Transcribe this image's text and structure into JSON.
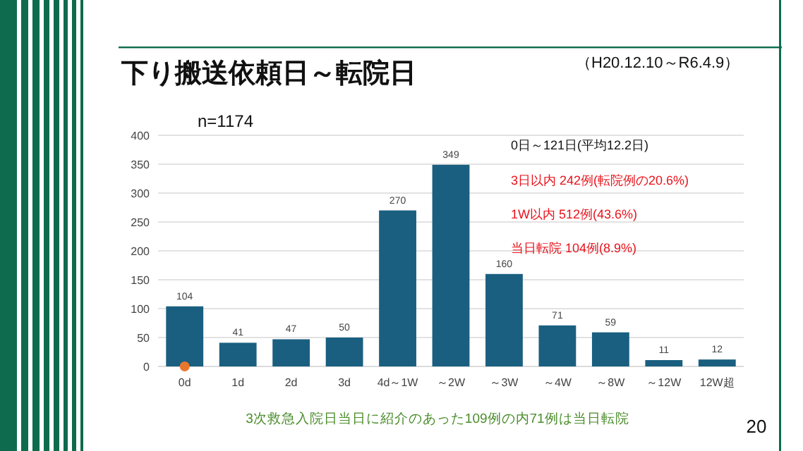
{
  "chart_data": {
    "type": "bar",
    "title": "下り搬送依頼日～転院日",
    "subtitle": "（H20.12.10～R6.4.9）",
    "categories": [
      "0d",
      "1d",
      "2d",
      "3d",
      "4d～1W",
      "～2W",
      "～3W",
      "～4W",
      "～8W",
      "～12W",
      "12W超"
    ],
    "values": [
      104,
      41,
      47,
      50,
      270,
      349,
      160,
      71,
      59,
      11,
      12
    ],
    "color": "#1a5f80",
    "series": [
      {
        "type": "scatter",
        "x": [
          "0d"
        ],
        "values": [
          0
        ],
        "value_labels": [
          null
        ],
        "color": "#e8772e"
      }
    ],
    "data_labels": true,
    "ylim": [
      0,
      400
    ],
    "yticks": [
      0,
      50,
      100,
      150,
      200,
      250,
      300,
      350,
      400
    ],
    "grid": "y",
    "annotations": [
      "n=1174",
      "0日～121日(平均12.2日)",
      "3日以内  242例(転院例の20.6%)",
      "1W以内  512例(43.6%)",
      "当日転院  104例(8.9%)",
      "3次救急入院日当日に紹介のあった109例の内71例は当日転院",
      "20"
    ]
  }
}
